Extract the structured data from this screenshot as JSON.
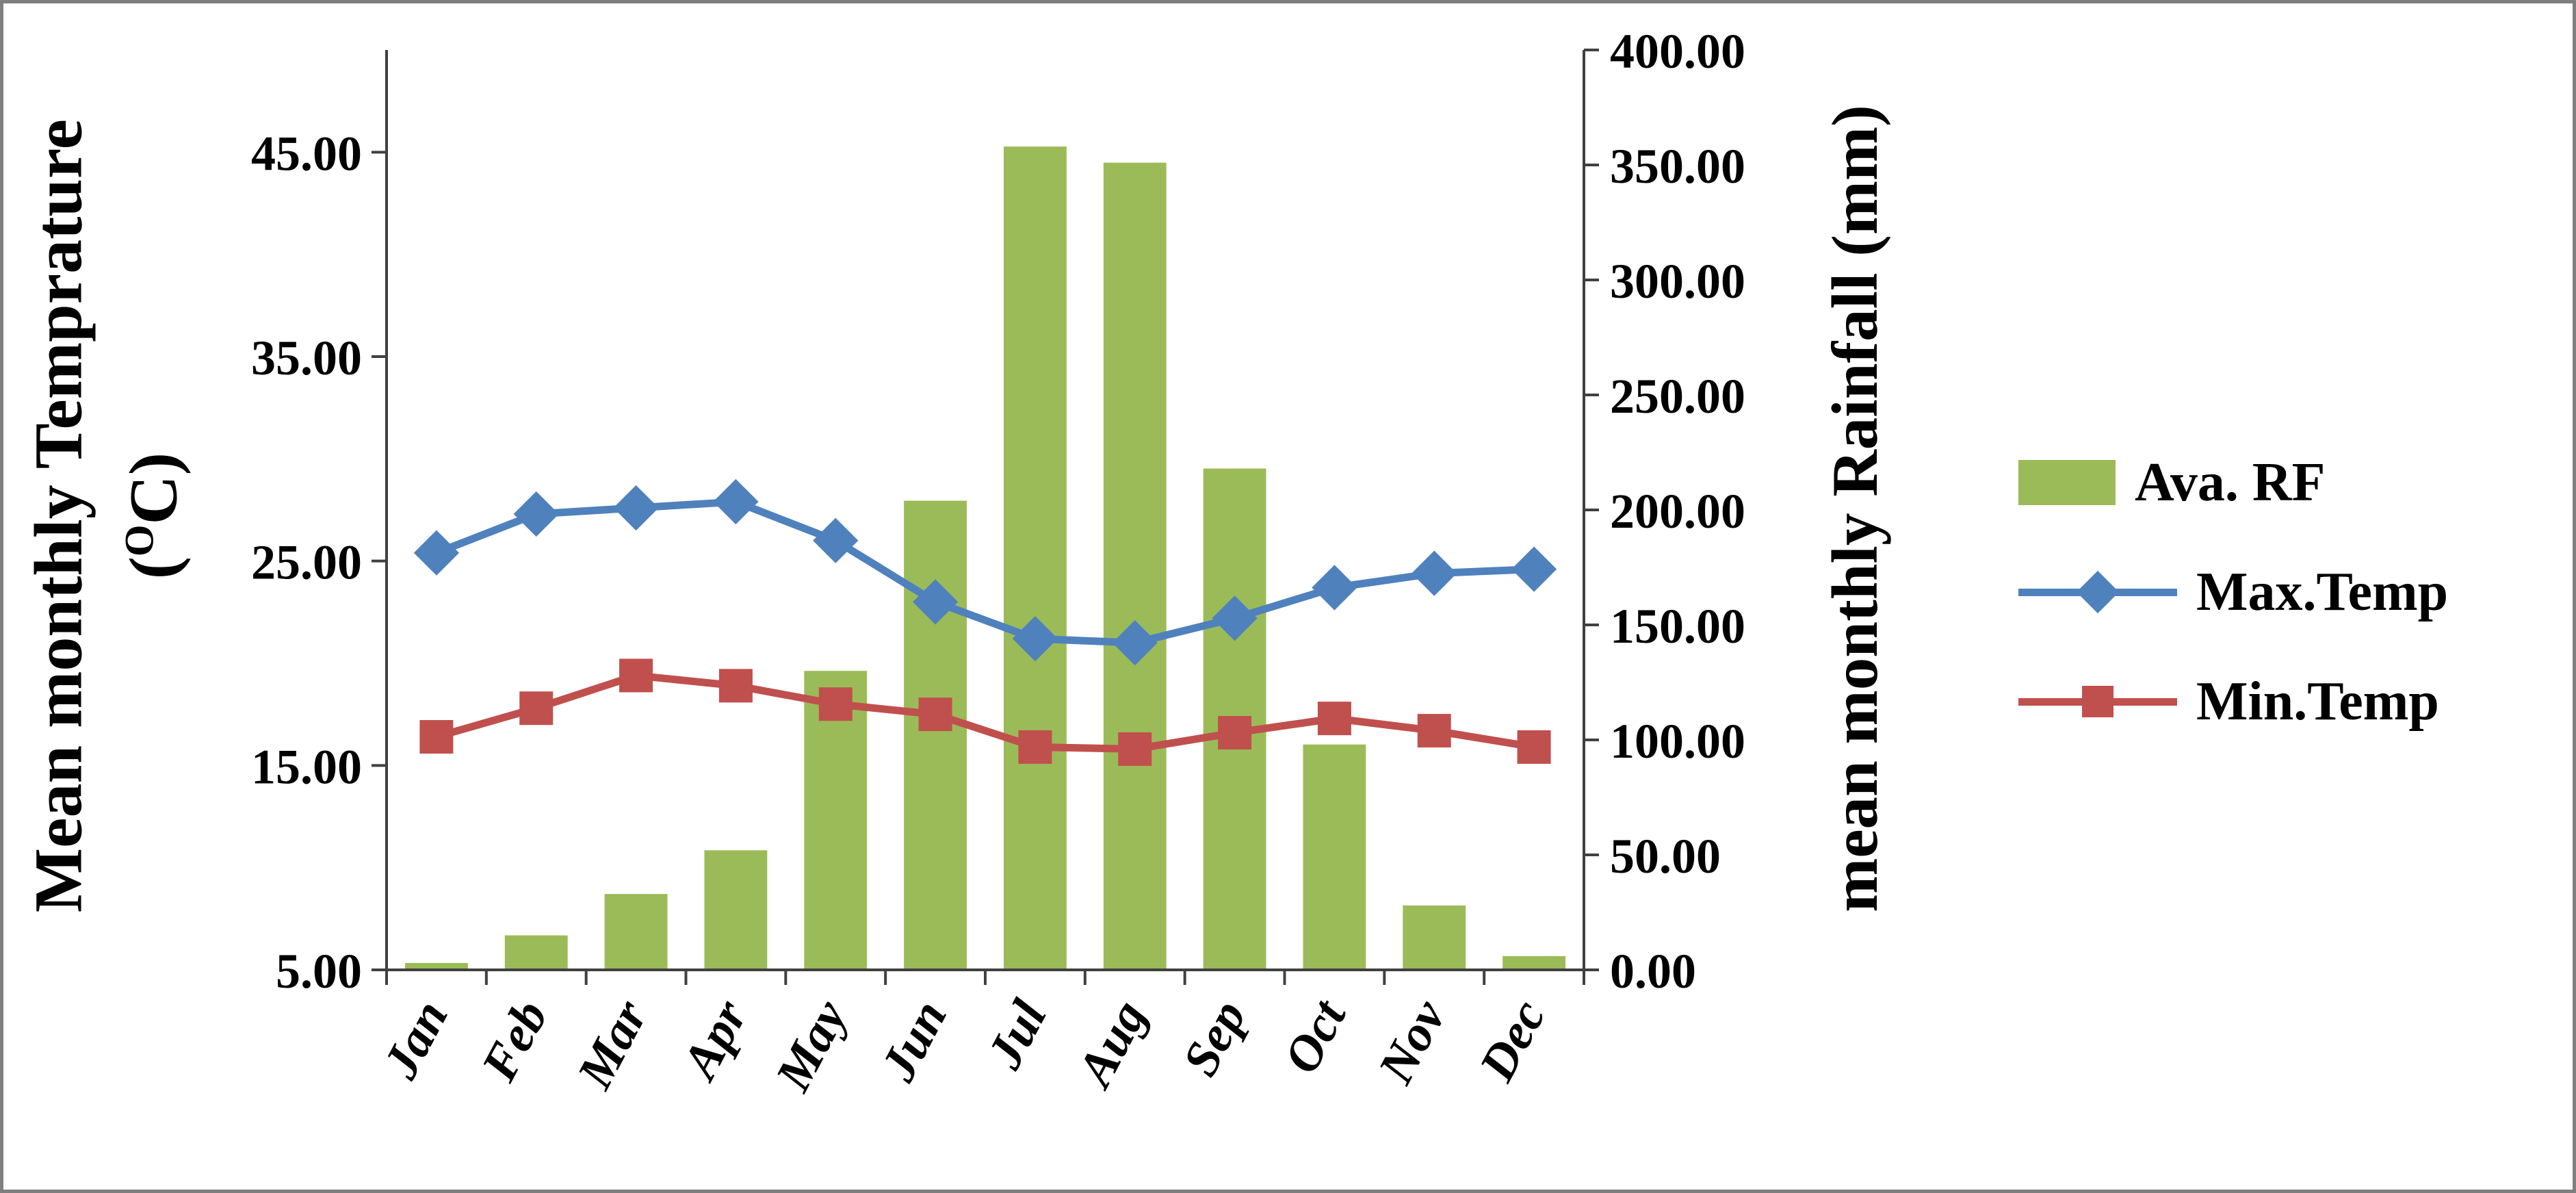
{
  "chart_data": {
    "type": "bar",
    "subtype": "combo-bar-line-dual-axis",
    "categories": [
      "Jan",
      "Feb",
      "Mar",
      "Apr",
      "May",
      "Jun",
      "Jul",
      "Aug",
      "Sep",
      "Oct",
      "Nov",
      "Dec"
    ],
    "bar_series": {
      "name": "Ava. RF",
      "axis": "right",
      "color": "#9BBB59",
      "values": [
        3,
        15,
        33,
        52,
        130,
        204,
        358,
        351,
        218,
        98,
        28,
        6
      ]
    },
    "line_series": [
      {
        "name": "Max.Temp",
        "axis": "left",
        "color": "#4F81BD",
        "marker": "diamond",
        "values": [
          25.4,
          27.3,
          27.6,
          27.9,
          26.0,
          23.0,
          21.2,
          21.0,
          22.2,
          23.7,
          24.4,
          24.6
        ]
      },
      {
        "name": "Min.Temp",
        "axis": "left",
        "color": "#C0504D",
        "marker": "square",
        "values": [
          16.4,
          17.8,
          19.4,
          18.9,
          18.0,
          17.5,
          15.9,
          15.8,
          16.6,
          17.3,
          16.7,
          15.9
        ]
      }
    ],
    "left_axis": {
      "title": "Mean monthly Temprature",
      "unit_open": "(",
      "unit_sup": "O",
      "unit_close": "C)",
      "min": 5,
      "max": 50,
      "ticks": [
        5,
        15,
        25,
        35,
        45
      ],
      "tick_format": "0.00"
    },
    "right_axis": {
      "title": "mean monthly Rainfall (mm)",
      "min": 0,
      "max": 400,
      "tick_step": 50,
      "tick_format": "0.00"
    },
    "legend": {
      "position": "right",
      "items": [
        "Ava. RF",
        "Max.Temp",
        "Min.Temp"
      ]
    },
    "gridlines": false,
    "axis_line_color": "#404040",
    "text_color": "#000000"
  }
}
